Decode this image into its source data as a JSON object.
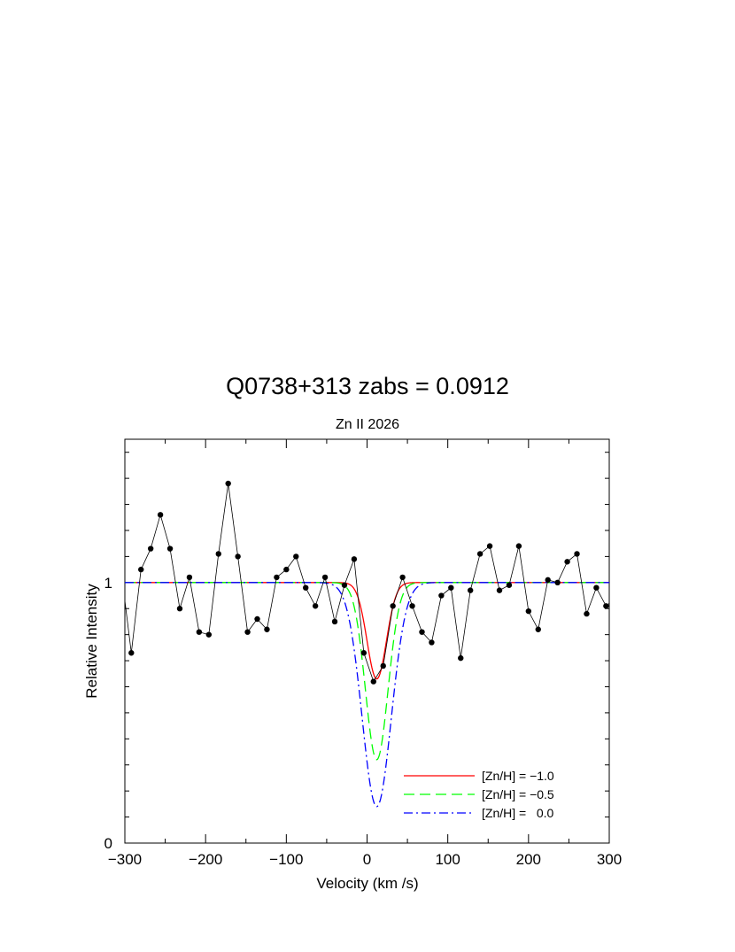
{
  "chart_data": {
    "type": "line",
    "title": "Q0738+313 zabs = 0.0912",
    "subtitle": "Zn II 2026",
    "xlabel": "Velocity (km /s)",
    "ylabel": "Relative Intensity",
    "xlim": [
      -300,
      300
    ],
    "ylim": [
      0,
      1.55
    ],
    "x_ticks": [
      -300,
      -200,
      -100,
      0,
      100,
      200,
      300
    ],
    "x_tick_labels": [
      "−300",
      "−200",
      "−100",
      "0",
      "100",
      "200",
      "300"
    ],
    "y_ticks": [
      0,
      1
    ],
    "y_tick_labels": [
      "0",
      "1"
    ],
    "legend_position": "bottom-right",
    "data_series": {
      "color": "#000000",
      "x": [
        -300,
        -292,
        -280,
        -268,
        -256,
        -244,
        -232,
        -220,
        -208,
        -196,
        -184,
        -172,
        -160,
        -148,
        -136,
        -124,
        -112,
        -100,
        -88,
        -76,
        -64,
        -52,
        -40,
        -28,
        -16,
        -4,
        8,
        20,
        32,
        44,
        56,
        68,
        80,
        92,
        104,
        116,
        128,
        140,
        152,
        164,
        176,
        188,
        200,
        212,
        224,
        236,
        248,
        260,
        272,
        284,
        296,
        300
      ],
      "y": [
        0.93,
        0.73,
        1.05,
        1.13,
        1.26,
        1.13,
        0.9,
        1.02,
        0.81,
        0.8,
        1.11,
        1.38,
        1.1,
        0.81,
        0.86,
        0.82,
        1.02,
        1.05,
        1.1,
        0.98,
        0.91,
        1.02,
        0.85,
        0.99,
        1.09,
        0.73,
        0.62,
        0.68,
        0.91,
        1.02,
        0.91,
        0.81,
        0.77,
        0.95,
        0.98,
        0.71,
        0.97,
        1.11,
        1.14,
        0.97,
        0.99,
        1.14,
        0.89,
        0.82,
        1.01,
        1.0,
        1.08,
        1.11,
        0.88,
        0.98,
        0.91,
        0.92
      ]
    },
    "series": [
      {
        "name": "[Zn/H] = −1.0",
        "color": "#ff0000",
        "dash": "solid",
        "center": 12,
        "depth": 0.37,
        "sigma": 12
      },
      {
        "name": "[Zn/H] = −0.5",
        "color": "#00ff00",
        "dash": "dashed",
        "center": 12,
        "depth": 0.68,
        "sigma": 14
      },
      {
        "name": "[Zn/H] =   0.0",
        "color": "#0000ff",
        "dash": "dashdot",
        "center": 12,
        "depth": 0.86,
        "sigma": 18
      }
    ]
  }
}
